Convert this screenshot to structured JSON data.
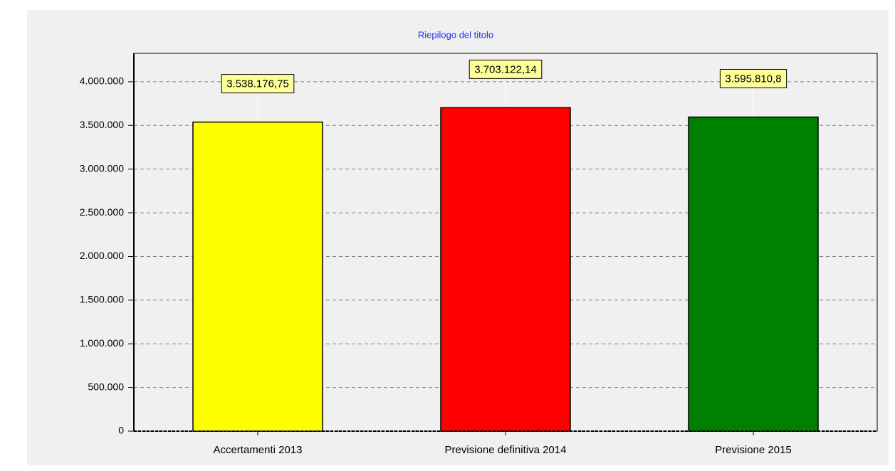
{
  "chart_data": {
    "type": "bar",
    "title": "Riepilogo del titolo",
    "categories": [
      "Accertamenti 2013",
      "Previsione definitiva 2014",
      "Previsione 2015"
    ],
    "values": [
      3538176.75,
      3703122.14,
      3595810.8
    ],
    "value_labels": [
      "3.538.176,75",
      "3.703.122,14",
      "3.595.810,8"
    ],
    "colors": [
      "#ffff00",
      "#ff0000",
      "#008000"
    ],
    "ylim": [
      0,
      4325000
    ],
    "yticks": [
      0,
      {
        "value": 500000,
        "label": "500.000"
      },
      {
        "value": 1000000,
        "label": "1.000.000"
      },
      {
        "value": 1500000,
        "label": "1.500.000"
      },
      {
        "value": 2000000,
        "label": "2.000.000"
      },
      {
        "value": 2500000,
        "label": "2.500.000"
      },
      {
        "value": 3000000,
        "label": "3.000.000"
      },
      {
        "value": 3500000,
        "label": "3.500.000"
      },
      {
        "value": 4000000,
        "label": "4.000.000"
      }
    ],
    "grid": true
  }
}
